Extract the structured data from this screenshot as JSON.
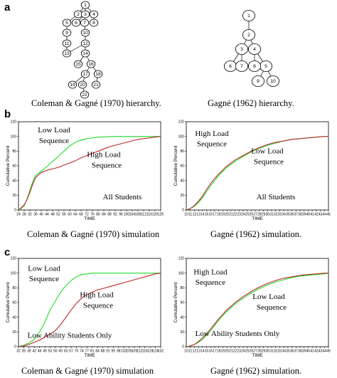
{
  "panels": {
    "a": "a",
    "b": "b",
    "c": "c"
  },
  "captions": {
    "a_left": "Coleman & Gagné (1970) hierarchy.",
    "a_right": "Gagné (1962) hierarchy.",
    "b_left": "Coleman & Gagné (1970) simulation",
    "b_right": "Gagné (1962) simulation.",
    "c_left": "Coleman & Gagné (1970) simulation",
    "c_right": "Gagné (1962) simulation."
  },
  "hierarchy_left": {
    "nodes": [
      "1",
      "2",
      "3",
      "4",
      "5",
      "6",
      "7",
      "8",
      "9",
      "10",
      "11",
      "12",
      "13",
      "14",
      "15",
      "16",
      "17",
      "18",
      "19",
      "20",
      "21",
      "22"
    ],
    "edges": [
      [
        "1",
        "2"
      ],
      [
        "1",
        "3"
      ],
      [
        "1",
        "4"
      ],
      [
        "2",
        "5"
      ],
      [
        "3",
        "6"
      ],
      [
        "3",
        "7"
      ],
      [
        "4",
        "8"
      ],
      [
        "5",
        "9"
      ],
      [
        "7",
        "10"
      ],
      [
        "9",
        "11"
      ],
      [
        "10",
        "12"
      ],
      [
        "11",
        "13"
      ],
      [
        "12",
        "13"
      ],
      [
        "12",
        "14"
      ],
      [
        "14",
        "15"
      ],
      [
        "14",
        "16"
      ],
      [
        "16",
        "17"
      ],
      [
        "16",
        "18"
      ],
      [
        "17",
        "19"
      ],
      [
        "17",
        "20"
      ],
      [
        "18",
        "21"
      ],
      [
        "20",
        "22"
      ]
    ]
  },
  "hierarchy_right": {
    "nodes": [
      "1",
      "2",
      "3",
      "4",
      "5",
      "6",
      "7",
      "8",
      "9",
      "10"
    ],
    "edges": [
      [
        "1",
        "2"
      ],
      [
        "2",
        "3"
      ],
      [
        "2",
        "4"
      ],
      [
        "3",
        "6"
      ],
      [
        "3",
        "7"
      ],
      [
        "4",
        "8"
      ],
      [
        "4",
        "5"
      ],
      [
        "5",
        "9"
      ],
      [
        "5",
        "10"
      ],
      [
        "3",
        "4"
      ]
    ]
  },
  "colors": {
    "green": "#1fdc2a",
    "red": "#c0262b"
  },
  "chart_data": [
    {
      "id": "b_left",
      "type": "line",
      "ylabel": "Cumulative Percent",
      "xlabel": "TIME",
      "xticks": [
        "24",
        "28",
        "32",
        "36",
        "40",
        "44",
        "48",
        "52",
        "56",
        "60",
        "64",
        "68",
        "72",
        "76",
        "80",
        "84",
        "88",
        "92",
        "96",
        "100",
        "104",
        "108",
        "112",
        "116",
        "120",
        "125"
      ],
      "yticks": [
        "0",
        "20",
        "40",
        "60",
        "80",
        "100",
        "120"
      ],
      "ylim": [
        0,
        120
      ],
      "annotations": [
        "Low Load",
        "Sequence",
        "High Load",
        "Sequence",
        "All Students"
      ],
      "series": [
        {
          "color": "green",
          "x": [
            24,
            26,
            28,
            30,
            32,
            34,
            36,
            40,
            44,
            48,
            52,
            56,
            60,
            64,
            68,
            72,
            76,
            80,
            90,
            100,
            110,
            120,
            125
          ],
          "y": [
            0,
            2,
            6,
            15,
            27,
            38,
            47,
            53,
            59,
            66,
            73,
            80,
            87,
            92,
            95,
            97,
            98,
            99,
            100,
            100,
            100,
            100,
            100
          ]
        },
        {
          "color": "red",
          "x": [
            24,
            26,
            28,
            30,
            32,
            34,
            36,
            40,
            44,
            48,
            52,
            56,
            60,
            64,
            68,
            72,
            76,
            80,
            84,
            88,
            92,
            96,
            100,
            104,
            108,
            112,
            116,
            120,
            125
          ],
          "y": [
            0,
            3,
            7,
            14,
            24,
            35,
            44,
            51,
            54,
            56,
            58,
            61,
            64,
            67,
            71,
            74,
            77,
            80,
            83,
            86,
            88,
            90,
            92,
            94,
            96,
            97,
            98,
            99,
            100
          ]
        }
      ]
    },
    {
      "id": "b_right",
      "type": "line",
      "ylabel": "Cumulative Percent",
      "xlabel": "TIME",
      "xticks": [
        "10",
        "11",
        "12",
        "13",
        "14",
        "15",
        "16",
        "17",
        "18",
        "19",
        "20",
        "21",
        "22",
        "23",
        "24",
        "25",
        "26",
        "27",
        "28",
        "29",
        "30",
        "31",
        "32",
        "33",
        "34",
        "35",
        "36",
        "37",
        "38",
        "39",
        "40",
        "41",
        "42",
        "43",
        "44",
        "45"
      ],
      "yticks": [
        "0",
        "20",
        "40",
        "60",
        "80",
        "100",
        "120"
      ],
      "ylim": [
        0,
        120
      ],
      "annotations": [
        "High Load",
        "Sequence",
        "Low Load",
        "Sequence",
        "All Students"
      ],
      "series": [
        {
          "color": "green",
          "x": [
            10,
            11,
            12,
            13,
            14,
            15,
            16,
            17,
            18,
            20,
            22,
            24,
            26,
            28,
            30,
            32,
            34,
            36,
            38,
            40,
            42,
            44,
            45
          ],
          "y": [
            0,
            2,
            5,
            10,
            17,
            25,
            33,
            40,
            47,
            58,
            66,
            73,
            79,
            84,
            88,
            91,
            94,
            96,
            97,
            98,
            99,
            100,
            100
          ]
        },
        {
          "color": "red",
          "x": [
            10,
            11,
            12,
            13,
            14,
            15,
            16,
            17,
            18,
            20,
            22,
            24,
            26,
            28,
            30,
            32,
            34,
            36,
            38,
            40,
            42,
            44,
            45
          ],
          "y": [
            0,
            2,
            6,
            12,
            19,
            28,
            36,
            43,
            49,
            60,
            68,
            74,
            80,
            85,
            89,
            92,
            94,
            96,
            97,
            98,
            99,
            100,
            100
          ]
        }
      ]
    },
    {
      "id": "c_left",
      "type": "line",
      "ylabel": "Cumulative Percent",
      "xlabel": "TIME",
      "xticks": [
        "32",
        "35",
        "39",
        "42",
        "46",
        "49",
        "53",
        "56",
        "60",
        "63",
        "67",
        "70",
        "74",
        "77",
        "81",
        "84",
        "88",
        "91",
        "95",
        "98",
        "102",
        "105",
        "109",
        "112",
        "116",
        "119",
        "124",
        "132"
      ],
      "yticks": [
        "0",
        "20",
        "40",
        "60",
        "80",
        "100",
        "120"
      ],
      "ylim": [
        0,
        120
      ],
      "annotations": [
        "Low Load",
        "Sequence",
        "High Load",
        "Sequence",
        "Low Ability Students Only"
      ],
      "series": [
        {
          "color": "green",
          "x": [
            32,
            35,
            39,
            42,
            46,
            49,
            53,
            56,
            60,
            63,
            67,
            70,
            74,
            77,
            81,
            84,
            88,
            95,
            105,
            115,
            124,
            132
          ],
          "y": [
            0,
            2,
            5,
            10,
            20,
            33,
            50,
            62,
            74,
            83,
            90,
            95,
            98,
            99,
            100,
            100,
            100,
            100,
            100,
            100,
            100,
            100
          ]
        },
        {
          "color": "red",
          "x": [
            32,
            35,
            39,
            42,
            46,
            49,
            53,
            56,
            60,
            63,
            67,
            70,
            74,
            77,
            81,
            84,
            88,
            91,
            95,
            98,
            102,
            105,
            109,
            112,
            116,
            119,
            124,
            132
          ],
          "y": [
            0,
            1,
            3,
            6,
            9,
            13,
            17,
            22,
            30,
            40,
            50,
            59,
            66,
            71,
            74,
            77,
            79,
            81,
            83,
            85,
            87,
            89,
            91,
            93,
            95,
            97,
            99,
            100
          ]
        }
      ]
    },
    {
      "id": "c_right",
      "type": "line",
      "ylabel": "Cumulative Percent",
      "xlabel": "TIME",
      "xticks": [
        "10",
        "11",
        "12",
        "13",
        "14",
        "15",
        "16",
        "17",
        "18",
        "19",
        "20",
        "21",
        "22",
        "23",
        "24",
        "25",
        "26",
        "27",
        "28",
        "29",
        "30",
        "31",
        "32",
        "33",
        "34",
        "35",
        "36",
        "37",
        "38",
        "39",
        "40",
        "41",
        "42",
        "43",
        "44",
        "45"
      ],
      "yticks": [
        "0",
        "20",
        "40",
        "60",
        "80",
        "100",
        "120"
      ],
      "ylim": [
        0,
        120
      ],
      "annotations": [
        "High Load",
        "Sequence",
        "Low Load",
        "Sequence",
        "Low Ability Students Only"
      ],
      "series": [
        {
          "color": "green",
          "x": [
            10,
            11,
            12,
            13,
            14,
            15,
            16,
            17,
            18,
            20,
            22,
            24,
            26,
            28,
            30,
            32,
            34,
            36,
            38,
            40,
            42,
            44,
            45
          ],
          "y": [
            0,
            1,
            3,
            6,
            10,
            16,
            22,
            29,
            36,
            48,
            58,
            66,
            73,
            79,
            84,
            88,
            91,
            94,
            96,
            97,
            98,
            99,
            100
          ]
        },
        {
          "color": "red",
          "x": [
            10,
            11,
            12,
            13,
            14,
            15,
            16,
            17,
            18,
            20,
            22,
            24,
            26,
            28,
            30,
            32,
            34,
            36,
            38,
            40,
            42,
            44,
            45
          ],
          "y": [
            0,
            1,
            3,
            7,
            12,
            18,
            24,
            31,
            38,
            50,
            60,
            68,
            75,
            81,
            86,
            90,
            93,
            95,
            97,
            98,
            99,
            100,
            100
          ]
        }
      ]
    }
  ]
}
